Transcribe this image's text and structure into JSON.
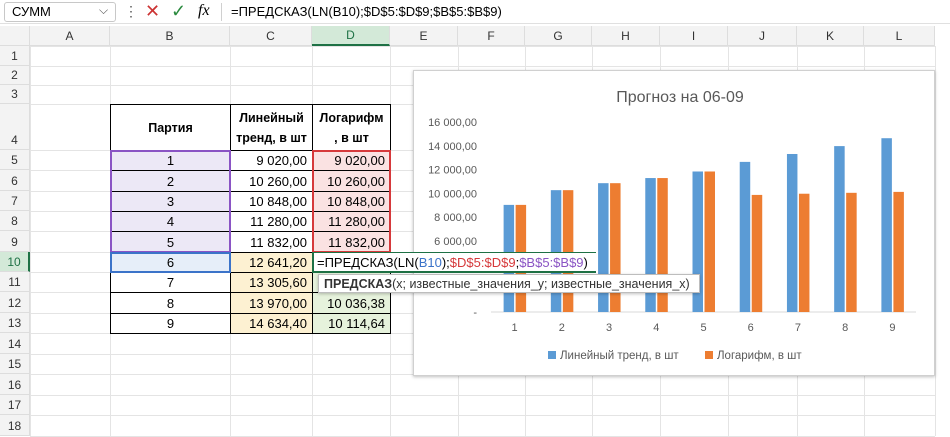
{
  "formula_bar": {
    "name_box": "СУММ",
    "fx": "fx",
    "formula": "=ПРЕДСКАЗ(LN(B10);$D$5:$D$9;$B$5:$B$9)"
  },
  "columns": [
    "A",
    "B",
    "C",
    "D",
    "E",
    "F",
    "G",
    "H",
    "I",
    "J",
    "K",
    "L"
  ],
  "rows": [
    1,
    2,
    3,
    4,
    5,
    6,
    7,
    8,
    9,
    10,
    11,
    12,
    13,
    14,
    15,
    16,
    17,
    18
  ],
  "table": {
    "header": [
      [
        "Партия"
      ],
      [
        "Линейный",
        "тренд, в шт"
      ],
      [
        "Логарифм",
        ", в шт"
      ]
    ],
    "rows": [
      [
        "1",
        "9 020,00",
        "9 020,00"
      ],
      [
        "2",
        "10 260,00",
        "10 260,00"
      ],
      [
        "3",
        "10 848,00",
        "10 848,00"
      ],
      [
        "4",
        "11 280,00",
        "11 280,00"
      ],
      [
        "5",
        "11 832,00",
        "11 832,00"
      ],
      [
        "6",
        "12 641,20"
      ],
      [
        "7",
        "13 305,60"
      ],
      [
        "8",
        "13 970,00",
        "10 036,38"
      ],
      [
        "9",
        "14 634,40",
        "10 114,64"
      ]
    ]
  },
  "cell_edit": {
    "parts": [
      "=ПРЕДСКАЗ(LN(",
      "B10",
      ");",
      "$D$5:$D$9",
      ";",
      "$B$5:$B$9",
      ")"
    ]
  },
  "tooltip": {
    "function": "ПРЕДСКАЗ",
    "args": "(x; известные_значения_y; известные_значения_x)"
  },
  "chart_data": {
    "type": "bar",
    "title": "Прогноз на 06-09",
    "categories": [
      1,
      2,
      3,
      4,
      5,
      6,
      7,
      8,
      9
    ],
    "series": [
      {
        "name": "Линейный тренд, в шт",
        "color": "#5b9bd5",
        "values": [
          9020,
          10260,
          10848,
          11280,
          11832,
          12641.2,
          13305.6,
          13970,
          14634.4
        ]
      },
      {
        "name": "Логарифм, в шт",
        "color": "#ed7d31",
        "values": [
          9020,
          10260,
          10848,
          11280,
          11832,
          9860,
          9960,
          10036.38,
          10114.64
        ]
      }
    ],
    "ylim": [
      0,
      16000
    ],
    "yticks": [
      {
        "value": 0,
        "label": "-"
      },
      {
        "value": 6000,
        "label": "6 000,00"
      },
      {
        "value": 8000,
        "label": "8 000,00"
      },
      {
        "value": 10000,
        "label": "10 000,00"
      },
      {
        "value": 12000,
        "label": "12 000,00"
      },
      {
        "value": 14000,
        "label": "14 000,00"
      },
      {
        "value": 16000,
        "label": "16 000,00"
      }
    ],
    "grid": false,
    "legend": "bottom"
  }
}
